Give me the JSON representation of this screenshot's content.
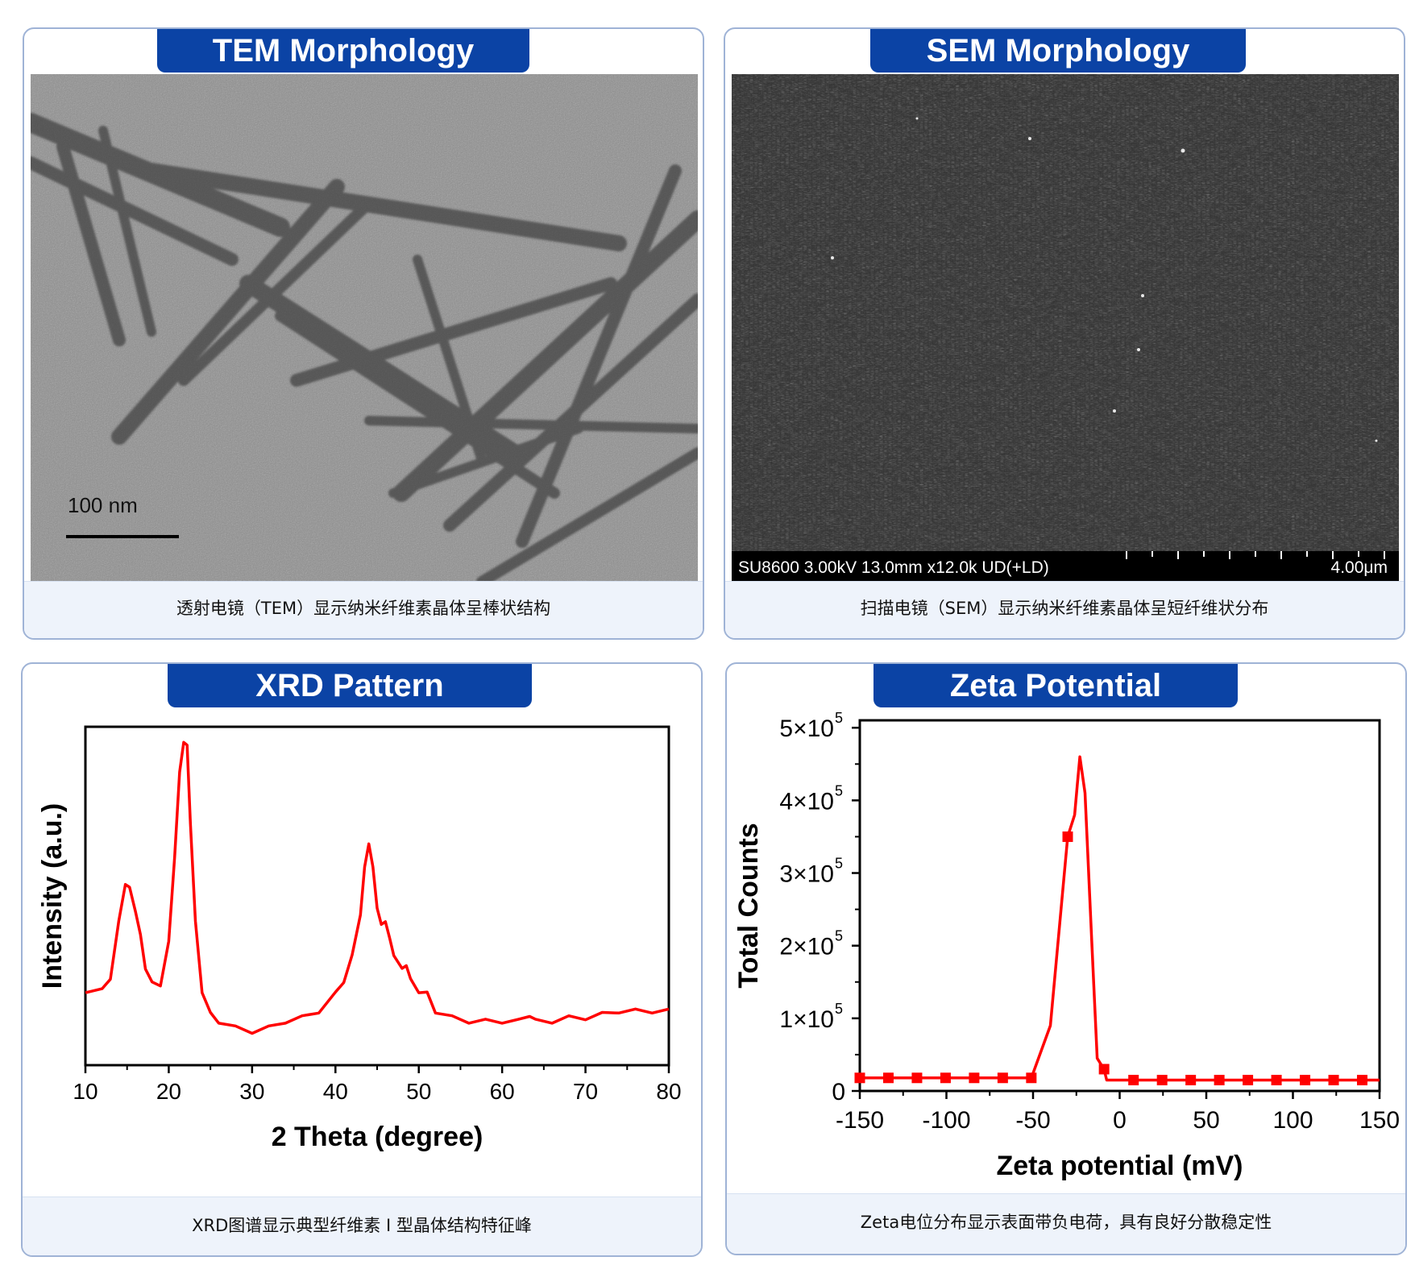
{
  "tem": {
    "title": "TEM Morphology",
    "scale_bar": "100 nm",
    "caption": "透射电镜（TEM）显示纳米纤维素晶体呈棒状结构"
  },
  "sem": {
    "title": "SEM Morphology",
    "info": "SU8600 3.00kV 13.0mm x12.0k UD(+LD)",
    "scale_bar": "4.00μm",
    "caption": "扫描电镜（SEM）显示纳米纤维素晶体呈短纤维状分布"
  },
  "xrd": {
    "title": "XRD Pattern",
    "caption": "XRD图谱显示典型纤维素 I 型晶体结构特征峰"
  },
  "zeta": {
    "title": "Zeta Potential",
    "caption": "Zeta电位分布显示表面带负电荷，具有良好分散稳定性"
  },
  "colors": {
    "accent": "#0b43a5",
    "series": "#ff0000",
    "panel_border": "#9fb3d6",
    "caption_bg": "#eef3fb"
  },
  "chart_data": [
    {
      "type": "line",
      "xlabel": "2 Theta (degree)",
      "ylabel": "Intensity (a.u.)",
      "xlim": [
        10,
        80
      ],
      "ylim": [
        0,
        100
      ],
      "xticks": [
        10,
        20,
        30,
        40,
        50,
        60,
        70,
        80
      ],
      "grid": false,
      "legend": "none",
      "series": [
        {
          "x": [
            10,
            12,
            13,
            14,
            14.8,
            15.3,
            16,
            16.6,
            17.2,
            18,
            19,
            20,
            20.7,
            21.3,
            21.8,
            22.2,
            22.6,
            23.2,
            24,
            25,
            26,
            28,
            30,
            32,
            34,
            36,
            38,
            40,
            41,
            42,
            43,
            43.5,
            44,
            44.5,
            45,
            45.5,
            46,
            46.5,
            47,
            48,
            48.5,
            49,
            50,
            51,
            52,
            54,
            56,
            58,
            60,
            62,
            63.3,
            64,
            66,
            68,
            70,
            72,
            74,
            76,
            78,
            80
          ],
          "y": [
            22,
            22,
            26,
            42,
            54,
            52,
            46,
            38,
            29,
            24,
            24,
            36,
            62,
            86,
            96,
            94,
            72,
            42,
            22,
            15,
            13,
            11,
            10,
            11,
            13,
            14,
            16,
            21,
            25,
            32,
            45,
            58,
            66,
            58,
            47,
            41,
            43,
            37,
            33,
            28,
            30,
            25,
            22,
            21,
            16,
            14,
            13,
            13,
            13,
            13,
            15,
            13,
            13,
            14,
            14,
            15,
            16,
            16,
            16,
            16
          ]
        }
      ]
    },
    {
      "type": "line",
      "xlabel": "Zeta potential (mV)",
      "ylabel": "Total Counts",
      "xlim": [
        -150,
        150
      ],
      "ylim": [
        0,
        500000
      ],
      "xticks": [
        "-150",
        "-100",
        "-50",
        "0",
        "50",
        "100",
        "150"
      ],
      "yticks": [
        "0",
        "1×10",
        "2×10",
        "3×10",
        "4×10",
        "5×10"
      ],
      "ytick_exponent": "5",
      "grid": false,
      "legend": "none",
      "series": [
        {
          "x": [
            -150,
            -133.5,
            -117,
            -100.5,
            -84,
            -67.5,
            -51,
            -40,
            -30,
            -26,
            -24.5,
            -23,
            -20,
            -16,
            -13,
            -9,
            -7.5,
            8,
            24.5,
            41,
            57.5,
            74,
            90.5,
            107,
            123.5,
            140,
            150
          ],
          "y": [
            18000,
            18000,
            18000,
            18000,
            18000,
            18000,
            18000,
            90000,
            350000,
            380000,
            420000,
            460000,
            410000,
            200000,
            45000,
            30000,
            15000,
            15000,
            15000,
            15000,
            15000,
            15000,
            15000,
            15000,
            15000,
            15000,
            15000
          ],
          "markers_x": [
            -150,
            -133.5,
            -117,
            -100.5,
            -84,
            -67.5,
            -51,
            -30,
            -9,
            8,
            24.5,
            41,
            57.5,
            74,
            90.5,
            107,
            123.5,
            140
          ],
          "markers_y": [
            18000,
            18000,
            18000,
            18000,
            18000,
            18000,
            18000,
            350000,
            30000,
            15000,
            15000,
            15000,
            15000,
            15000,
            15000,
            15000,
            15000,
            15000
          ]
        }
      ]
    }
  ]
}
